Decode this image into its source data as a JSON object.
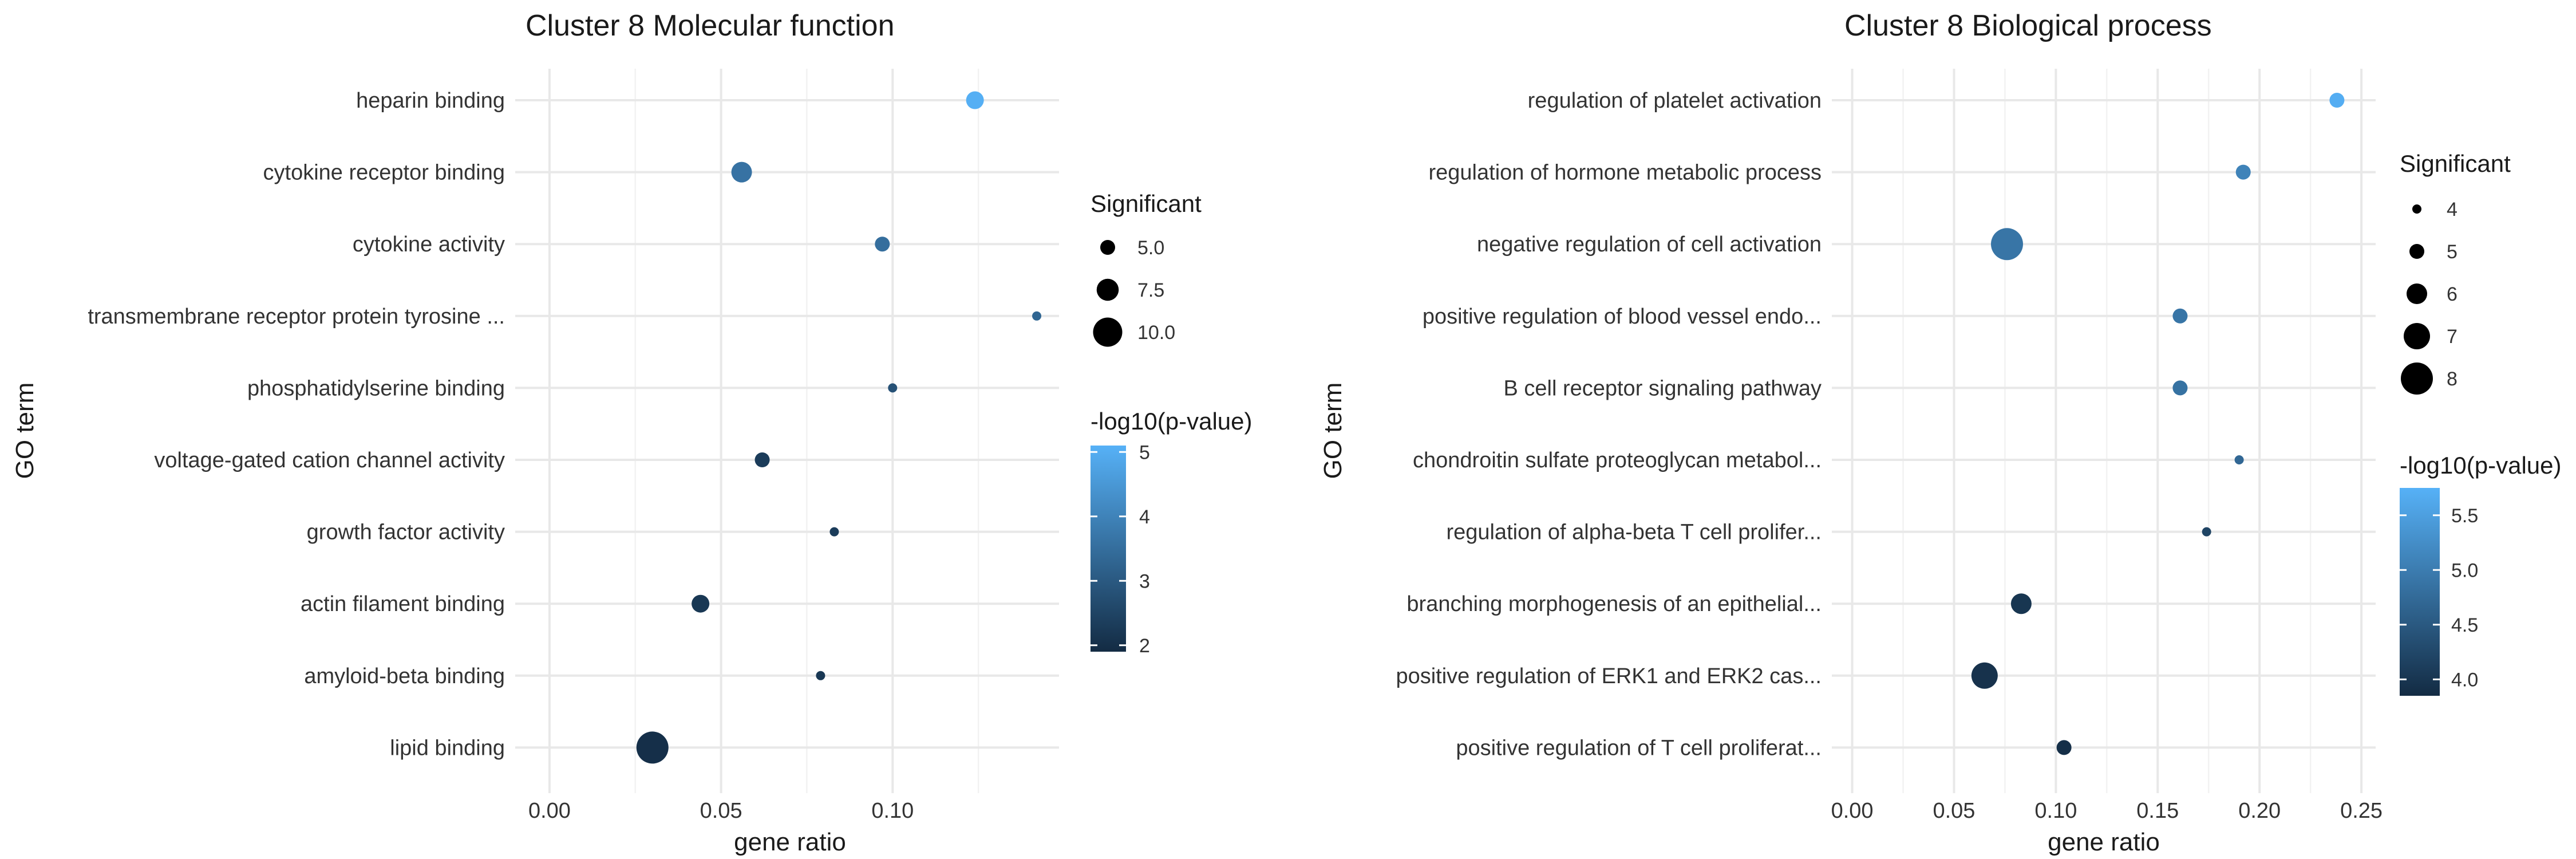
{
  "chart_data": [
    {
      "type": "scatter",
      "title": "Cluster 8 Molecular function",
      "xlabel": "gene ratio",
      "ylabel": "GO term",
      "xlim": [
        -0.01,
        0.1485
      ],
      "x_ticks": [
        0,
        0.05,
        0.1
      ],
      "x_tick_labels": [
        "0.00",
        "0.05",
        "0.10"
      ],
      "grid": true,
      "categories": [
        "heparin binding",
        "cytokine receptor binding",
        "cytokine activity",
        "transmembrane receptor protein tyrosine ...",
        "phosphatidylserine binding",
        "voltage-gated cation channel activity",
        "growth factor activity",
        "actin filament binding",
        "amyloid-beta binding",
        "lipid binding"
      ],
      "points": [
        {
          "term": "heparin binding",
          "gene_ratio": 0.124,
          "significant": 6,
          "neg_log10_p": 5.05
        },
        {
          "term": "cytokine receptor binding",
          "gene_ratio": 0.056,
          "significant": 7,
          "neg_log10_p": 3.6
        },
        {
          "term": "cytokine activity",
          "gene_ratio": 0.097,
          "significant": 5,
          "neg_log10_p": 3.5
        },
        {
          "term": "transmembrane receptor protein tyrosine ...",
          "gene_ratio": 0.142,
          "significant": 3,
          "neg_log10_p": 3.3
        },
        {
          "term": "phosphatidylserine binding",
          "gene_ratio": 0.1,
          "significant": 3,
          "neg_log10_p": 2.8
        },
        {
          "term": "voltage-gated cation channel activity",
          "gene_ratio": 0.062,
          "significant": 5,
          "neg_log10_p": 2.3
        },
        {
          "term": "growth factor activity",
          "gene_ratio": 0.083,
          "significant": 3,
          "neg_log10_p": 2.3
        },
        {
          "term": "actin filament binding",
          "gene_ratio": 0.044,
          "significant": 6,
          "neg_log10_p": 2.2
        },
        {
          "term": "amyloid-beta binding",
          "gene_ratio": 0.079,
          "significant": 3,
          "neg_log10_p": 2.2
        },
        {
          "term": "lipid binding",
          "gene_ratio": 0.03,
          "significant": 11,
          "neg_log10_p": 2.0
        }
      ],
      "size_legend": {
        "title": "Significant",
        "values": [
          5.0,
          7.5,
          10.0
        ],
        "labels": [
          "5.0",
          "7.5",
          "10.0"
        ],
        "range": [
          3,
          11
        ]
      },
      "color_legend": {
        "title": "-log10(p-value)",
        "ticks": [
          2,
          3,
          4,
          5
        ],
        "labels": [
          "2",
          "3",
          "4",
          "5"
        ],
        "range": [
          1.9,
          5.1
        ],
        "low_color": "#132B43",
        "high_color": "#56B1F7"
      },
      "legend_position": "right"
    },
    {
      "type": "scatter",
      "title": "Cluster 8 Biological process",
      "xlabel": "gene ratio",
      "ylabel": "GO term",
      "xlim": [
        -0.01,
        0.257
      ],
      "x_ticks": [
        0,
        0.05,
        0.1,
        0.15,
        0.2,
        0.25
      ],
      "x_tick_labels": [
        "0.00",
        "0.05",
        "0.10",
        "0.15",
        "0.20",
        "0.25"
      ],
      "grid": true,
      "categories": [
        "regulation of platelet activation",
        "regulation of hormone metabolic process",
        "negative regulation of cell activation",
        "positive regulation of blood vessel endo...",
        "B cell receptor signaling pathway",
        "chondroitin sulfate proteoglycan metabol...",
        "regulation of alpha-beta T cell prolifer...",
        "branching morphogenesis of an epithelial...",
        "positive regulation of ERK1 and ERK2 cas...",
        "positive regulation of T cell proliferat..."
      ],
      "points": [
        {
          "term": "regulation of platelet activation",
          "gene_ratio": 0.238,
          "significant": 5,
          "neg_log10_p": 5.7
        },
        {
          "term": "regulation of hormone metabolic process",
          "gene_ratio": 0.192,
          "significant": 5,
          "neg_log10_p": 5.1
        },
        {
          "term": "negative regulation of cell activation",
          "gene_ratio": 0.076,
          "significant": 8,
          "neg_log10_p": 4.9
        },
        {
          "term": "positive regulation of blood vessel endo...",
          "gene_ratio": 0.161,
          "significant": 5,
          "neg_log10_p": 4.9
        },
        {
          "term": "B cell receptor signaling pathway",
          "gene_ratio": 0.161,
          "significant": 5,
          "neg_log10_p": 4.85
        },
        {
          "term": "chondroitin sulfate proteoglycan metabol...",
          "gene_ratio": 0.19,
          "significant": 4,
          "neg_log10_p": 4.7
        },
        {
          "term": "regulation of alpha-beta T cell prolifer...",
          "gene_ratio": 0.174,
          "significant": 4,
          "neg_log10_p": 4.2
        },
        {
          "term": "branching morphogenesis of an epithelial...",
          "gene_ratio": 0.083,
          "significant": 6,
          "neg_log10_p": 4.0
        },
        {
          "term": "positive regulation of ERK1 and ERK2 cas...",
          "gene_ratio": 0.065,
          "significant": 7,
          "neg_log10_p": 3.95
        },
        {
          "term": "positive regulation of T cell proliferat...",
          "gene_ratio": 0.104,
          "significant": 5,
          "neg_log10_p": 3.9
        }
      ],
      "size_legend": {
        "title": "Significant",
        "values": [
          4,
          5,
          6,
          7,
          8
        ],
        "labels": [
          "4",
          "5",
          "6",
          "7",
          "8"
        ],
        "range": [
          4,
          8
        ]
      },
      "color_legend": {
        "title": "-log10(p-value)",
        "ticks": [
          4.0,
          4.5,
          5.0,
          5.5
        ],
        "labels": [
          "4.0",
          "4.5",
          "5.0",
          "5.5"
        ],
        "range": [
          3.85,
          5.75
        ],
        "low_color": "#132B43",
        "high_color": "#56B1F7"
      },
      "legend_position": "right"
    }
  ]
}
